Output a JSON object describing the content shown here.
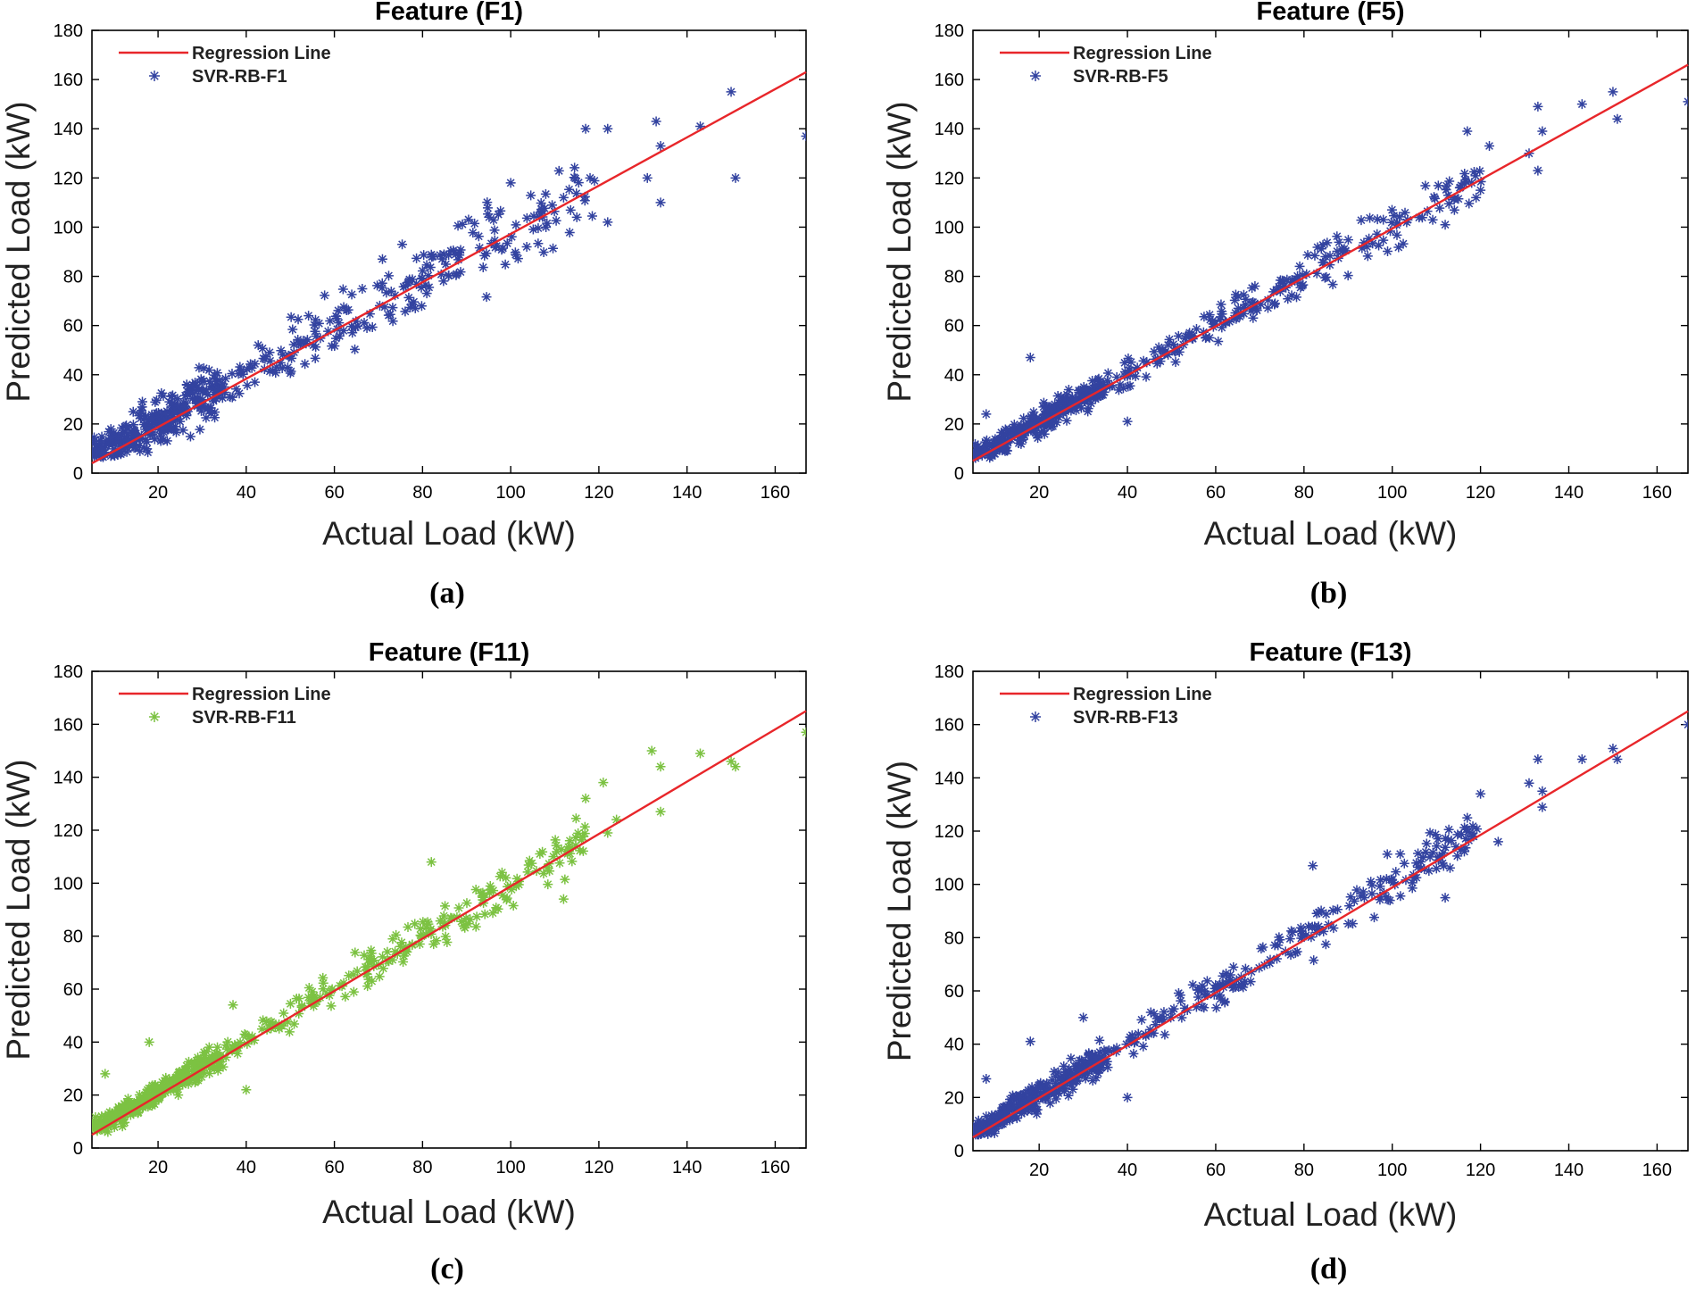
{
  "chart_data": [
    {
      "type": "scatter",
      "panel_label": "(a)",
      "title": "Feature (F1)",
      "xlabel": "Actual Load (kW)",
      "ylabel": "Predicted Load (kW)",
      "xlim": [
        5,
        167
      ],
      "ylim": [
        0,
        180
      ],
      "xticks": [
        20,
        40,
        60,
        80,
        100,
        120,
        140,
        160
      ],
      "yticks": [
        0,
        20,
        40,
        60,
        80,
        100,
        120,
        140,
        160,
        180
      ],
      "grid": false,
      "legend": "top-left",
      "colors": {
        "line": "#e8262a",
        "points": "#3343a0"
      },
      "regression_line": {
        "name": "Regression Line",
        "x": [
          5,
          167
        ],
        "y": [
          4,
          163
        ]
      },
      "series": [
        {
          "name": "SVR-RB-F1",
          "marker": "asterisk",
          "cluster": {
            "x_range": [
              5,
              118
            ],
            "slope": 0.98,
            "intercept": 1.5,
            "spread": 9
          },
          "outliers": [
            [
              150,
              155
            ],
            [
              167,
              137
            ],
            [
              151,
              120
            ],
            [
              143,
              141
            ],
            [
              134,
              133
            ],
            [
              133,
              143
            ],
            [
              131,
              120
            ],
            [
              134,
              110
            ],
            [
              117,
              140
            ],
            [
              122,
              140
            ],
            [
              118,
              120
            ],
            [
              108,
              100
            ],
            [
              122,
              102
            ],
            [
              112,
              112
            ],
            [
              115,
              104
            ],
            [
              100,
              118
            ]
          ]
        }
      ]
    },
    {
      "type": "scatter",
      "panel_label": "(b)",
      "title": "Feature (F5)",
      "xlabel": "Actual Load (kW)",
      "ylabel": "Predicted Load (kW)",
      "xlim": [
        5,
        167
      ],
      "ylim": [
        0,
        180
      ],
      "xticks": [
        20,
        40,
        60,
        80,
        100,
        120,
        140,
        160
      ],
      "yticks": [
        0,
        20,
        40,
        60,
        80,
        100,
        120,
        140,
        160,
        180
      ],
      "grid": false,
      "legend": "top-left",
      "colors": {
        "line": "#e8262a",
        "points": "#3343a0"
      },
      "regression_line": {
        "name": "Regression Line",
        "x": [
          5,
          167
        ],
        "y": [
          5,
          166
        ]
      },
      "series": [
        {
          "name": "SVR-RB-F5",
          "marker": "asterisk",
          "cluster": {
            "x_range": [
              5,
              120
            ],
            "slope": 0.99,
            "intercept": 1,
            "spread": 5
          },
          "outliers": [
            [
              167,
              151
            ],
            [
              150,
              155
            ],
            [
              151,
              144
            ],
            [
              143,
              150
            ],
            [
              133,
              149
            ],
            [
              134,
              139
            ],
            [
              131,
              130
            ],
            [
              133,
              123
            ],
            [
              117,
              139
            ],
            [
              122,
              133
            ],
            [
              120,
              115
            ],
            [
              118,
              118
            ],
            [
              119,
              112
            ],
            [
              112,
              101
            ],
            [
              18,
              47
            ],
            [
              40,
              21
            ],
            [
              8,
              24
            ]
          ]
        }
      ]
    },
    {
      "type": "scatter",
      "panel_label": "(c)",
      "title": "Feature (F11)",
      "xlabel": "Actual Load (kW)",
      "ylabel": "Predicted Load (kW)",
      "xlim": [
        5,
        167
      ],
      "ylim": [
        0,
        180
      ],
      "xticks": [
        20,
        40,
        60,
        80,
        100,
        120,
        140,
        160
      ],
      "yticks": [
        0,
        20,
        40,
        60,
        80,
        100,
        120,
        140,
        160,
        180
      ],
      "grid": false,
      "legend": "top-left",
      "colors": {
        "line": "#e8262a",
        "points": "#7cc242"
      },
      "regression_line": {
        "name": "Regression Line",
        "x": [
          5,
          167
        ],
        "y": [
          5,
          165
        ]
      },
      "series": [
        {
          "name": "SVR-RB-F11",
          "marker": "asterisk",
          "cluster": {
            "x_range": [
              5,
              118
            ],
            "slope": 0.99,
            "intercept": 1,
            "spread": 4.5
          },
          "outliers": [
            [
              167,
              157
            ],
            [
              150,
              146
            ],
            [
              151,
              144
            ],
            [
              143,
              149
            ],
            [
              132,
              150
            ],
            [
              134,
              144
            ],
            [
              134,
              127
            ],
            [
              117,
              132
            ],
            [
              121,
              138
            ],
            [
              124,
              124
            ],
            [
              122,
              119
            ],
            [
              112,
              94
            ],
            [
              82,
              108
            ],
            [
              18,
              40
            ],
            [
              40,
              22
            ],
            [
              8,
              28
            ],
            [
              37,
              54
            ]
          ]
        }
      ]
    },
    {
      "type": "scatter",
      "panel_label": "(d)",
      "title": "Feature (F13)",
      "xlabel": "Actual Load (kW)",
      "ylabel": "Predicted Load (kW)",
      "xlim": [
        5,
        167
      ],
      "ylim": [
        0,
        180
      ],
      "xticks": [
        20,
        40,
        60,
        80,
        100,
        120,
        140,
        160
      ],
      "yticks": [
        0,
        20,
        40,
        60,
        80,
        100,
        120,
        140,
        160,
        180
      ],
      "grid": false,
      "legend": "top-left",
      "colors": {
        "line": "#e8262a",
        "points": "#3343a0"
      },
      "regression_line": {
        "name": "Regression Line",
        "x": [
          5,
          167
        ],
        "y": [
          5,
          165
        ]
      },
      "series": [
        {
          "name": "SVR-RB-F13",
          "marker": "asterisk",
          "cluster": {
            "x_range": [
              5,
              120
            ],
            "slope": 0.99,
            "intercept": 1,
            "spread": 5
          },
          "outliers": [
            [
              167,
              160
            ],
            [
              150,
              151
            ],
            [
              151,
              147
            ],
            [
              143,
              147
            ],
            [
              133,
              147
            ],
            [
              134,
              135
            ],
            [
              134,
              129
            ],
            [
              131,
              138
            ],
            [
              120,
              134
            ],
            [
              124,
              116
            ],
            [
              117,
              125
            ],
            [
              112,
              95
            ],
            [
              82,
              107
            ],
            [
              18,
              41
            ],
            [
              40,
              20
            ],
            [
              8,
              27
            ],
            [
              30,
              50
            ]
          ]
        }
      ]
    }
  ]
}
